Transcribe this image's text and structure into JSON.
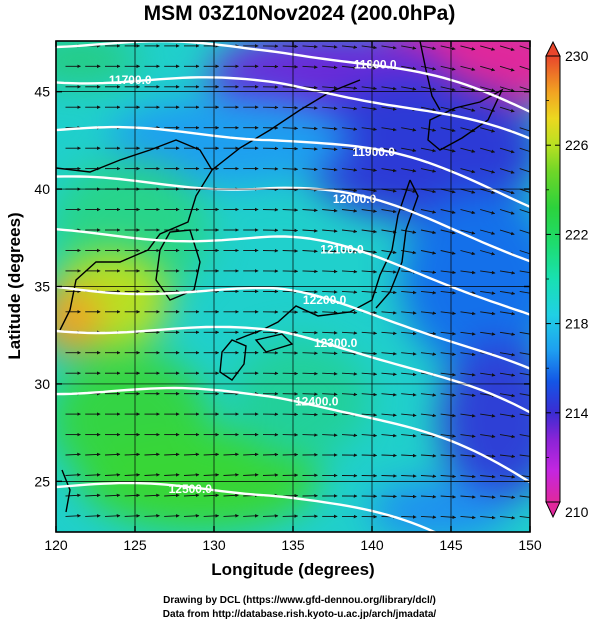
{
  "title": "MSM 03Z10Nov2024 (200.0hPa)",
  "map": {
    "lon_range": [
      120,
      150
    ],
    "lat_range": [
      22.4,
      47.6
    ],
    "x_ticks": [
      "120",
      "125",
      "130",
      "135",
      "140",
      "145",
      "150"
    ],
    "y_ticks": [
      "25",
      "30",
      "35",
      "40",
      "45"
    ],
    "xlabel": "Longitude (degrees)",
    "ylabel": "Latitude  (degrees)",
    "field": "temperature (color shading), geopotential height (white contours), wind (arrows)",
    "contours": [
      {
        "label": "11700.0",
        "label_lon": 124.7,
        "label_lat": 45.6
      },
      {
        "label": "11800.0",
        "label_lon": 140.2,
        "label_lat": 46.4
      },
      {
        "label": "11900.0",
        "label_lon": 140.1,
        "label_lat": 41.9
      },
      {
        "label": "12000.0",
        "label_lon": 138.9,
        "label_lat": 39.5
      },
      {
        "label": "12100.0",
        "label_lon": 138.1,
        "label_lat": 36.9
      },
      {
        "label": "12200.0",
        "label_lon": 137.0,
        "label_lat": 34.3
      },
      {
        "label": "12300.0",
        "label_lon": 137.7,
        "label_lat": 32.1
      },
      {
        "label": "12400.0",
        "label_lon": 136.5,
        "label_lat": 29.1
      },
      {
        "label": "12500.0",
        "label_lon": 128.5,
        "label_lat": 24.6
      }
    ]
  },
  "colorbar": {
    "min": 210,
    "max": 230,
    "tick_labels": [
      "230",
      "226",
      "222",
      "218",
      "214",
      "210"
    ],
    "palette": [
      "#e0289c",
      "#c426e0",
      "#8a24d6",
      "#3b2cd2",
      "#1456e6",
      "#1e9ff0",
      "#20d0e4",
      "#18e0b2",
      "#1edc6e",
      "#2cd23c",
      "#6ed628",
      "#b8e022",
      "#ecd820",
      "#f2a222",
      "#f06a26",
      "#e8462c"
    ]
  },
  "credits": {
    "line1": "Drawing by DCL (https://www.gfd-dennou.org/library/dcl/)",
    "line2": "Data from http://database.rish.kyoto-u.ac.jp/arch/jmadata/"
  }
}
